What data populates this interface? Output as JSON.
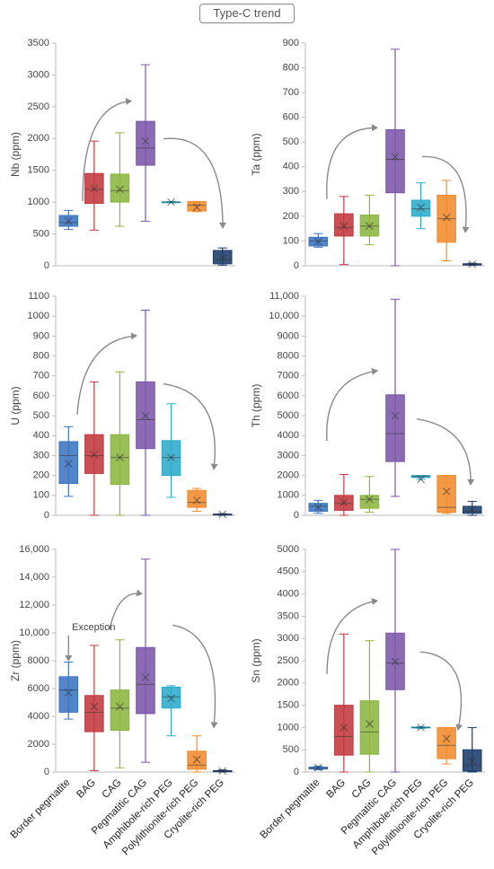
{
  "title": "Type-C trend",
  "chart_data": [
    {
      "type": "box",
      "ylabel": "Nb (ppm)",
      "ylim": [
        0,
        3500
      ],
      "yticks": [
        0,
        500,
        1000,
        1500,
        2000,
        2500,
        3000,
        3500
      ],
      "boxes": [
        {
          "color": "#3b74c1",
          "min": 570,
          "q1": 620,
          "median": 680,
          "q3": 790,
          "max": 870,
          "mean": 700
        },
        {
          "color": "#c1393d",
          "min": 560,
          "q1": 980,
          "median": 1200,
          "q3": 1450,
          "max": 1960,
          "mean": 1210
        },
        {
          "color": "#8db640",
          "min": 620,
          "q1": 1000,
          "median": 1180,
          "q3": 1440,
          "max": 2090,
          "mean": 1200
        },
        {
          "color": "#7b56a8",
          "min": 700,
          "q1": 1580,
          "median": 1850,
          "q3": 2270,
          "max": 3160,
          "mean": 1960
        },
        {
          "color": "#2eaac9",
          "min": 990,
          "q1": 995,
          "median": 1000,
          "q3": 1005,
          "max": 1010,
          "mean": 1000
        },
        {
          "color": "#f28c2c",
          "min": 850,
          "q1": 860,
          "median": 950,
          "q3": 1010,
          "max": 1010,
          "mean": 920
        },
        {
          "color": "#1b3c6c",
          "min": 10,
          "q1": 30,
          "median": 100,
          "q3": 240,
          "max": 280,
          "mean": 120
        }
      ]
    },
    {
      "type": "box",
      "ylabel": "Ta (ppm)",
      "ylim": [
        0,
        900
      ],
      "yticks": [
        0,
        100,
        200,
        300,
        400,
        500,
        600,
        700,
        800,
        900
      ],
      "boxes": [
        {
          "color": "#3b74c1",
          "min": 75,
          "q1": 80,
          "median": 100,
          "q3": 115,
          "max": 130,
          "mean": 97
        },
        {
          "color": "#c1393d",
          "min": 5,
          "q1": 120,
          "median": 155,
          "q3": 210,
          "max": 280,
          "mean": 160
        },
        {
          "color": "#8db640",
          "min": 85,
          "q1": 120,
          "median": 160,
          "q3": 205,
          "max": 285,
          "mean": 160
        },
        {
          "color": "#7b56a8",
          "min": 0,
          "q1": 295,
          "median": 430,
          "q3": 550,
          "max": 875,
          "mean": 440
        },
        {
          "color": "#2eaac9",
          "min": 150,
          "q1": 200,
          "median": 230,
          "q3": 265,
          "max": 335,
          "mean": 235
        },
        {
          "color": "#f28c2c",
          "min": 20,
          "q1": 95,
          "median": 190,
          "q3": 285,
          "max": 345,
          "mean": 195
        },
        {
          "color": "#1b3c6c",
          "min": 2,
          "q1": 3,
          "median": 5,
          "q3": 8,
          "max": 10,
          "mean": 6
        }
      ]
    },
    {
      "type": "box",
      "ylabel": "U (ppm)",
      "ylim": [
        0,
        1100
      ],
      "yticks": [
        0,
        100,
        200,
        300,
        400,
        500,
        600,
        700,
        800,
        900,
        1000,
        1100
      ],
      "boxes": [
        {
          "color": "#3b74c1",
          "min": 95,
          "q1": 160,
          "median": 300,
          "q3": 370,
          "max": 445,
          "mean": 260
        },
        {
          "color": "#c1393d",
          "min": 0,
          "q1": 210,
          "median": 300,
          "q3": 405,
          "max": 670,
          "mean": 305
        },
        {
          "color": "#8db640",
          "min": 0,
          "q1": 155,
          "median": 290,
          "q3": 405,
          "max": 720,
          "mean": 290
        },
        {
          "color": "#7b56a8",
          "min": 0,
          "q1": 335,
          "median": 480,
          "q3": 670,
          "max": 1030,
          "mean": 500
        },
        {
          "color": "#2eaac9",
          "min": 90,
          "q1": 200,
          "median": 290,
          "q3": 375,
          "max": 560,
          "mean": 290
        },
        {
          "color": "#f28c2c",
          "min": 20,
          "q1": 40,
          "median": 65,
          "q3": 125,
          "max": 135,
          "mean": 75
        },
        {
          "color": "#1b3c6c",
          "min": 0,
          "q1": 2,
          "median": 4,
          "q3": 6,
          "max": 8,
          "mean": 5
        }
      ]
    },
    {
      "type": "box",
      "ylabel": "Th (ppm)",
      "ylim": [
        0,
        11000
      ],
      "yticks": [
        0,
        1000,
        2000,
        3000,
        4000,
        5000,
        6000,
        7000,
        8000,
        9000,
        {
          "value": 10000,
          "label": "10,000"
        },
        {
          "value": 11000,
          "label": "11,000"
        }
      ],
      "boxes": [
        {
          "color": "#3b74c1",
          "min": 100,
          "q1": 200,
          "median": 450,
          "q3": 600,
          "max": 750,
          "mean": 400
        },
        {
          "color": "#c1393d",
          "min": 0,
          "q1": 250,
          "median": 600,
          "q3": 1000,
          "max": 2050,
          "mean": 650
        },
        {
          "color": "#8db640",
          "min": 150,
          "q1": 350,
          "median": 800,
          "q3": 1000,
          "max": 1950,
          "mean": 800
        },
        {
          "color": "#7b56a8",
          "min": 950,
          "q1": 2700,
          "median": 4100,
          "q3": 6050,
          "max": 10850,
          "mean": 5000
        },
        {
          "color": "#2eaac9",
          "min": 1800,
          "q1": 1900,
          "median": 1950,
          "q3": 2000,
          "max": 2000,
          "mean": 1800
        },
        {
          "color": "#f28c2c",
          "min": 100,
          "q1": 150,
          "median": 400,
          "q3": 2000,
          "max": 2000,
          "mean": 1200
        },
        {
          "color": "#1b3c6c",
          "min": 0,
          "q1": 100,
          "median": 200,
          "q3": 450,
          "max": 700,
          "mean": 300
        }
      ]
    },
    {
      "type": "box",
      "ylabel": "Zr (ppm)",
      "ylim": [
        0,
        16000
      ],
      "annotation": "Exception",
      "yticks": [
        0,
        2000,
        4000,
        6000,
        8000,
        {
          "value": 10000,
          "label": "10,000"
        },
        {
          "value": 12000,
          "label": "12,000"
        },
        {
          "value": 14000,
          "label": "14,000"
        },
        {
          "value": 16000,
          "label": "16,000"
        }
      ],
      "categories": [
        "Border pegmatite",
        "BAG",
        "CAG",
        "Pegmatitic CAG",
        "Amphibole-rich PEG",
        "Polylithionite-rich PEG",
        "Cryolite-rich PEG"
      ],
      "boxes": [
        {
          "color": "#3b74c1",
          "min": 3800,
          "q1": 4300,
          "median": 5900,
          "q3": 6850,
          "max": 7900,
          "mean": 5700
        },
        {
          "color": "#c1393d",
          "min": 100,
          "q1": 2900,
          "median": 4300,
          "q3": 5500,
          "max": 9100,
          "mean": 4700
        },
        {
          "color": "#8db640",
          "min": 300,
          "q1": 3000,
          "median": 4600,
          "q3": 5900,
          "max": 9500,
          "mean": 4700
        },
        {
          "color": "#7b56a8",
          "min": 700,
          "q1": 4200,
          "median": 6300,
          "q3": 8950,
          "max": 15300,
          "mean": 6800
        },
        {
          "color": "#2eaac9",
          "min": 2600,
          "q1": 4600,
          "median": 5400,
          "q3": 6100,
          "max": 6200,
          "mean": 5300
        },
        {
          "color": "#f28c2c",
          "min": 0,
          "q1": 200,
          "median": 500,
          "q3": 1500,
          "max": 2600,
          "mean": 900
        },
        {
          "color": "#1b3c6c",
          "min": 0,
          "q1": 20,
          "median": 60,
          "q3": 100,
          "max": 150,
          "mean": 80
        }
      ]
    },
    {
      "type": "box",
      "ylabel": "Sn (ppm)",
      "ylim": [
        0,
        5000
      ],
      "yticks": [
        0,
        500,
        1000,
        1500,
        2000,
        2500,
        3000,
        3500,
        4000,
        4500,
        5000
      ],
      "categories": [
        "Border pegmatite",
        "BAG",
        "CAG",
        "Pegmatitic CAG",
        "Amphibole-rich PEG",
        "Polylithionite-rich PEG",
        "Cryolite-rich PEG"
      ],
      "boxes": [
        {
          "color": "#3b74c1",
          "min": 50,
          "q1": 70,
          "median": 90,
          "q3": 110,
          "max": 130,
          "mean": 100
        },
        {
          "color": "#c1393d",
          "min": 0,
          "q1": 380,
          "median": 800,
          "q3": 1500,
          "max": 3100,
          "mean": 1000
        },
        {
          "color": "#8db640",
          "min": 0,
          "q1": 400,
          "median": 900,
          "q3": 1600,
          "max": 2950,
          "mean": 1080
        },
        {
          "color": "#7b56a8",
          "min": 0,
          "q1": 1850,
          "median": 2450,
          "q3": 3120,
          "max": 5000,
          "mean": 2480
        },
        {
          "color": "#2eaac9",
          "min": 980,
          "q1": 990,
          "median": 1000,
          "q3": 1010,
          "max": 1020,
          "mean": 1000
        },
        {
          "color": "#f28c2c",
          "min": 180,
          "q1": 300,
          "median": 600,
          "q3": 1000,
          "max": 1000,
          "mean": 750
        },
        {
          "color": "#1b3c6c",
          "min": 0,
          "q1": 20,
          "median": 150,
          "q3": 500,
          "max": 1000,
          "mean": 250
        }
      ]
    }
  ]
}
